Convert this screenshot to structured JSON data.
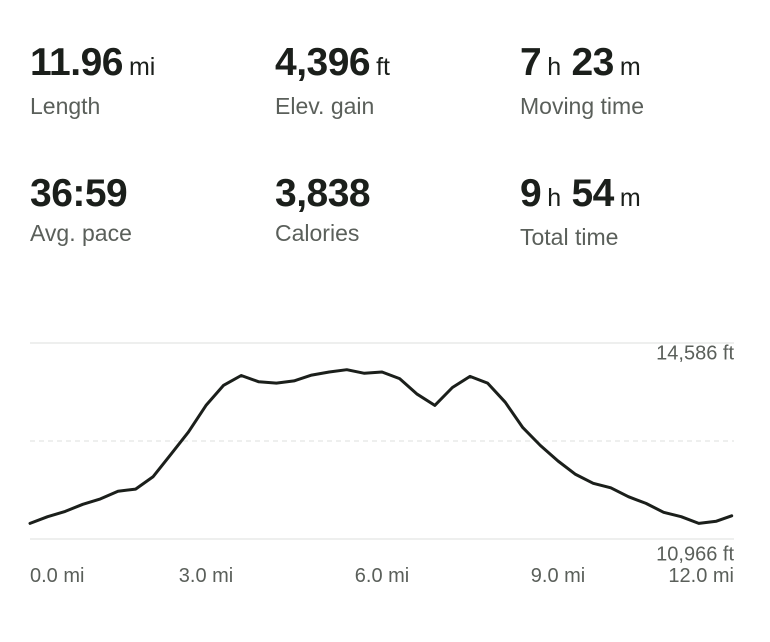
{
  "stats": [
    {
      "parts": [
        {
          "num": "11.96",
          "unit": "mi"
        }
      ],
      "label": "Length"
    },
    {
      "parts": [
        {
          "num": "4,396",
          "unit": "ft"
        }
      ],
      "label": "Elev. gain"
    },
    {
      "parts": [
        {
          "num": "7",
          "unit": "h"
        },
        {
          "num": "23",
          "unit": "m"
        }
      ],
      "label": "Moving time"
    },
    {
      "parts": [
        {
          "num": "36:59",
          "unit": ""
        }
      ],
      "label": "Avg. pace"
    },
    {
      "parts": [
        {
          "num": "3,838",
          "unit": ""
        }
      ],
      "label": "Calories"
    },
    {
      "parts": [
        {
          "num": "9",
          "unit": "h"
        },
        {
          "num": "54",
          "unit": "m"
        }
      ],
      "label": "Total time"
    }
  ],
  "chart_data": {
    "type": "line",
    "title": "",
    "xlabel": "",
    "ylabel": "",
    "xlim": [
      0,
      12
    ],
    "ylim": [
      10800,
      15200
    ],
    "x_ticks": [
      {
        "value": 0,
        "label": "0.0 mi"
      },
      {
        "value": 3,
        "label": "3.0 mi"
      },
      {
        "value": 6,
        "label": "6.0 mi"
      },
      {
        "value": 9,
        "label": "9.0 mi"
      },
      {
        "value": 12,
        "label": "12.0 mi"
      }
    ],
    "y_labels": [
      {
        "value": 14586,
        "label": "14,586 ft"
      },
      {
        "value": 10966,
        "label": "10,966 ft"
      }
    ],
    "y_gridlines": [
      15200,
      13000,
      10800
    ],
    "grid": true,
    "color": "#1b1f1b",
    "series": [
      {
        "x": [
          0,
          0.3,
          0.6,
          0.9,
          1.2,
          1.5,
          1.8,
          2.1,
          2.4,
          2.7,
          3.0,
          3.3,
          3.6,
          3.9,
          4.2,
          4.5,
          4.8,
          5.1,
          5.4,
          5.7,
          6.0,
          6.3,
          6.6,
          6.9,
          7.2,
          7.5,
          7.8,
          8.1,
          8.4,
          8.7,
          9.0,
          9.3,
          9.6,
          9.9,
          10.2,
          10.5,
          10.8,
          11.1,
          11.4,
          11.7,
          11.96
        ],
        "y": [
          11150,
          11300,
          11420,
          11580,
          11700,
          11870,
          11920,
          12200,
          12700,
          13200,
          13800,
          14250,
          14470,
          14330,
          14300,
          14350,
          14480,
          14550,
          14600,
          14520,
          14550,
          14400,
          14050,
          13800,
          14200,
          14450,
          14300,
          13870,
          13300,
          12900,
          12550,
          12250,
          12050,
          11950,
          11750,
          11600,
          11400,
          11300,
          11150,
          11200,
          11320
        ]
      }
    ]
  }
}
